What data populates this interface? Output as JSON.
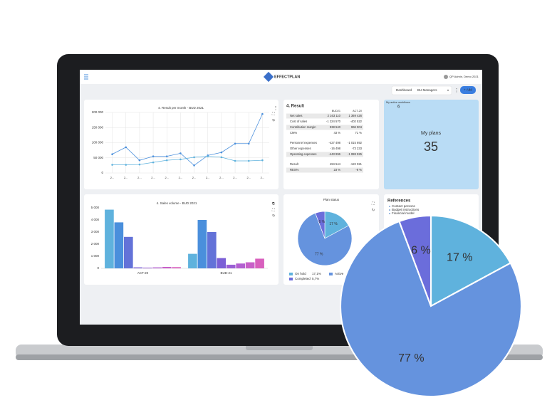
{
  "header": {
    "brand": "EFFECTPLAN",
    "user": "QP Admin, Demo 2021"
  },
  "toolbar": {
    "label": "Dashboard",
    "selected": "BU Managers",
    "add": "+ Add"
  },
  "result_per_month": {
    "type": "line",
    "title": "4. Result per month - BUD 2021",
    "categories": [
      "2...",
      "2...",
      "2...",
      "2...",
      "2...",
      "2...",
      "2...",
      "2...",
      "2...",
      "2...",
      "2...",
      "2..."
    ],
    "series": [
      {
        "color": "#4a8fdc",
        "values": [
          62000,
          85000,
          42000,
          55000,
          55000,
          65000,
          25000,
          58000,
          68000,
          97000,
          97000,
          195000
        ]
      },
      {
        "color": "#5fb2dd",
        "values": [
          27000,
          27000,
          28000,
          35000,
          42000,
          45000,
          52000,
          55000,
          52000,
          40000,
          40000,
          42000
        ]
      }
    ],
    "ylim": [
      0,
      200000
    ],
    "yticks": [
      0,
      {
        "value": 50000,
        "label": "50 000"
      },
      {
        "value": 100000,
        "label": "100 000"
      },
      {
        "value": 150000,
        "label": "150 000"
      },
      {
        "value": 200000,
        "label": "200 000"
      }
    ],
    "grid": true
  },
  "result_table": {
    "title": "4. Result",
    "columns": [
      "BUD21",
      "ACT-20"
    ],
    "rows": [
      {
        "label": "Net sales",
        "values": [
          "2 163 110",
          "1 369 426"
        ]
      },
      {
        "label": "Cost of sales",
        "values": [
          "-1 224 570",
          "-402 522"
        ]
      },
      {
        "label": "Contribution margin",
        "values": [
          "938 540",
          "966 904"
        ]
      },
      {
        "label": "CM%",
        "values": [
          "43 %",
          "71 %"
        ]
      },
      {
        "label": "Personnel expenses",
        "values": [
          "-427 498",
          "-1 015 692"
        ]
      },
      {
        "label": "Other expenses",
        "values": [
          "-16 498",
          "-73 233"
        ]
      },
      {
        "label": "Operating expenses",
        "values": [
          "-443 996",
          "-1 088 925"
        ]
      },
      {
        "label": "Result",
        "values": [
          "494 544",
          "-122 021"
        ]
      },
      {
        "label": "RES%",
        "values": [
          "23 %",
          "-9 %"
        ]
      }
    ]
  },
  "workflows": {
    "label": "My active workflows",
    "value": "6"
  },
  "plans": {
    "label": "My plans",
    "value": "35"
  },
  "sales_volume": {
    "type": "bar",
    "title": "4. Sales volume - BUD 2021",
    "categories": [
      "ACT-20",
      "BUD-21"
    ],
    "series": [
      {
        "color": "#5fb2dd",
        "values": [
          4850,
          1200
        ]
      },
      {
        "color": "#4a8fdc",
        "values": [
          3800,
          4000
        ]
      },
      {
        "color": "#6372d8",
        "values": [
          2600,
          3000
        ]
      },
      {
        "color": "#7b5fd6",
        "values": [
          80,
          850
        ]
      },
      {
        "color": "#9a5fd4",
        "values": [
          60,
          300
        ]
      },
      {
        "color": "#b35fd0",
        "values": [
          80,
          400
        ]
      },
      {
        "color": "#c85fc8",
        "values": [
          120,
          500
        ]
      },
      {
        "color": "#d85fbd",
        "values": [
          100,
          800
        ]
      }
    ],
    "ylim": [
      0,
      5000
    ],
    "yticks": [
      0,
      {
        "value": 1000,
        "label": "1 000"
      },
      {
        "value": 2000,
        "label": "2 000"
      },
      {
        "value": 3000,
        "label": "3 000"
      },
      {
        "value": 4000,
        "label": "4 000"
      },
      {
        "value": 5000,
        "label": "5 000"
      }
    ]
  },
  "plan_status": {
    "type": "pie",
    "title": "Plan status",
    "categories": [
      "On hold",
      "Completed",
      "Active"
    ],
    "values": [
      17.1,
      5.7,
      77.2
    ],
    "value_labels": [
      "17 %",
      "6 %",
      "77 %"
    ],
    "legend_labels": [
      "17,1%",
      "5,7%",
      null
    ],
    "colors": [
      "#5fb2dd",
      "#6b6ddb",
      "#6593de"
    ]
  },
  "references": {
    "title": "References",
    "links": [
      "Contact persons",
      "Budget instructions",
      "Financial model"
    ]
  }
}
